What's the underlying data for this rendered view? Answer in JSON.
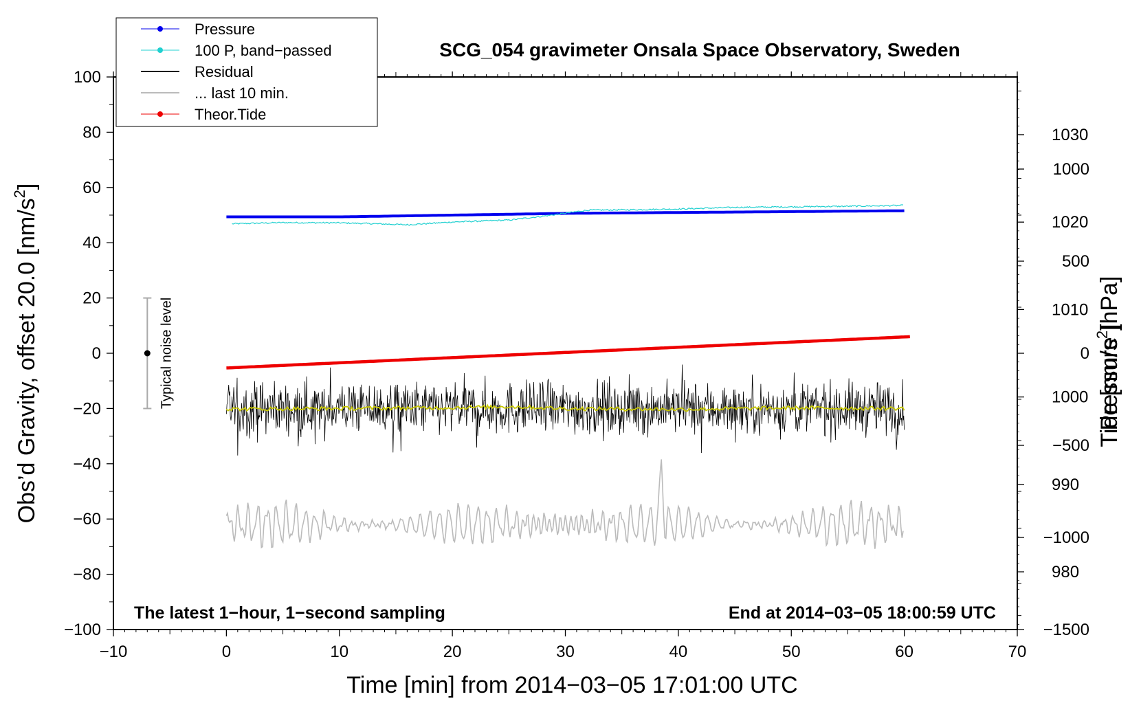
{
  "chart_data": {
    "type": "line",
    "title": "SCG_054 gravimeter Onsala Space Observatory, Sweden",
    "xlabel": "Time [min] from 2014−03−05 17:01:00 UTC",
    "ylabel_left": "Obs’d Gravity, offset 20.0 [nm/s",
    "ylabel_left_sup": "2",
    "ylabel_left_end": "]",
    "ylabel_pressure": "Pressure [hPa]",
    "ylabel_tide": "Tide [nm/s",
    "ylabel_tide_sup": "2",
    "ylabel_tide_end": "]",
    "xlim": [
      -10,
      70
    ],
    "ylim": [
      -100,
      100
    ],
    "pressure_lim": [
      973.4,
      1036.6
    ],
    "tide_lim": [
      -1500,
      1500
    ],
    "x_ticks": [
      -10,
      0,
      10,
      20,
      30,
      40,
      50,
      60,
      70
    ],
    "x_tick_labels": [
      "−10",
      "0",
      "10",
      "20",
      "30",
      "40",
      "50",
      "60",
      "70"
    ],
    "y_ticks": [
      -100,
      -80,
      -60,
      -40,
      -20,
      0,
      20,
      40,
      60,
      80,
      100
    ],
    "y_tick_labels": [
      "−100",
      "−80",
      "−60",
      "−40",
      "−20",
      "0",
      "20",
      "40",
      "60",
      "80",
      "100"
    ],
    "pressure_ticks": [
      980,
      990,
      1000,
      1010,
      1020,
      1030
    ],
    "pressure_tick_labels": [
      "980",
      "990",
      "1000",
      "1010",
      "1020",
      "1030"
    ],
    "tide_ticks": [
      -1500,
      -1000,
      -500,
      0,
      500,
      1000
    ],
    "tide_tick_labels": [
      "−1500",
      "−1000",
      "−500",
      "0",
      "500",
      "1000"
    ],
    "legend": [
      {
        "label": "Pressure",
        "color": "#0000ee",
        "marker": true
      },
      {
        "label": "100 P, band−passed",
        "color": "#20d0d0",
        "marker": true
      },
      {
        "label": "Residual",
        "color": "#000000",
        "marker": false
      },
      {
        "label": "... last 10 min.",
        "color": "#bbbbbb",
        "marker": false
      },
      {
        "label": "Theor.Tide",
        "color": "#ee0000",
        "marker": true
      }
    ],
    "annotations": {
      "left": "The latest 1−hour, 1−second sampling",
      "right": "End at 2014−03−05 18:00:59 UTC",
      "noise_label": "Typical noise level"
    },
    "noise_bar": {
      "x": -7,
      "center": 0,
      "half_range": 20
    },
    "series": [
      {
        "name": "Pressure",
        "color": "#0000ee",
        "axis": "pressure_hPa",
        "x": [
          0,
          10,
          20,
          30,
          40,
          50,
          60
        ],
        "y": [
          1020.6,
          1020.6,
          1020.8,
          1021.0,
          1021.1,
          1021.2,
          1021.3
        ]
      },
      {
        "name": "100 P, band-passed",
        "color": "#20d0d0",
        "axis": "gravity",
        "x": [
          0,
          5,
          10,
          13,
          16,
          20,
          25,
          28,
          32,
          35,
          40,
          45,
          50,
          55,
          60
        ],
        "y": [
          46.8,
          47.3,
          47.2,
          46.9,
          46.5,
          47.5,
          48.2,
          49.6,
          51.8,
          51.9,
          52.2,
          52.8,
          53.0,
          53.2,
          53.5
        ]
      },
      {
        "name": "Residual",
        "color": "#000000",
        "axis": "gravity",
        "x_range": [
          0,
          60
        ],
        "mean": -20,
        "envelope": 8,
        "note": "1-second sampling noise about -20 nm/s2"
      },
      {
        "name": "Residual (smoothed)",
        "color": "#c8c800",
        "axis": "gravity",
        "x": [
          0,
          10,
          20,
          25,
          30,
          40,
          50,
          60
        ],
        "y": [
          -20.2,
          -20.0,
          -19.7,
          -19.3,
          -20.0,
          -20.3,
          -19.8,
          -20.0
        ]
      },
      {
        "name": "... last 10 min.",
        "color": "#bbbbbb",
        "axis": "gravity",
        "x_range": [
          0,
          60
        ],
        "mean": -62,
        "envelope": 9,
        "peak": {
          "x": 38.5,
          "y": -42
        }
      },
      {
        "name": "Theor.Tide",
        "color": "#ee0000",
        "axis": "tide_nm_s2",
        "x": [
          0,
          60.5
        ],
        "y": [
          -80,
          90
        ]
      }
    ]
  }
}
